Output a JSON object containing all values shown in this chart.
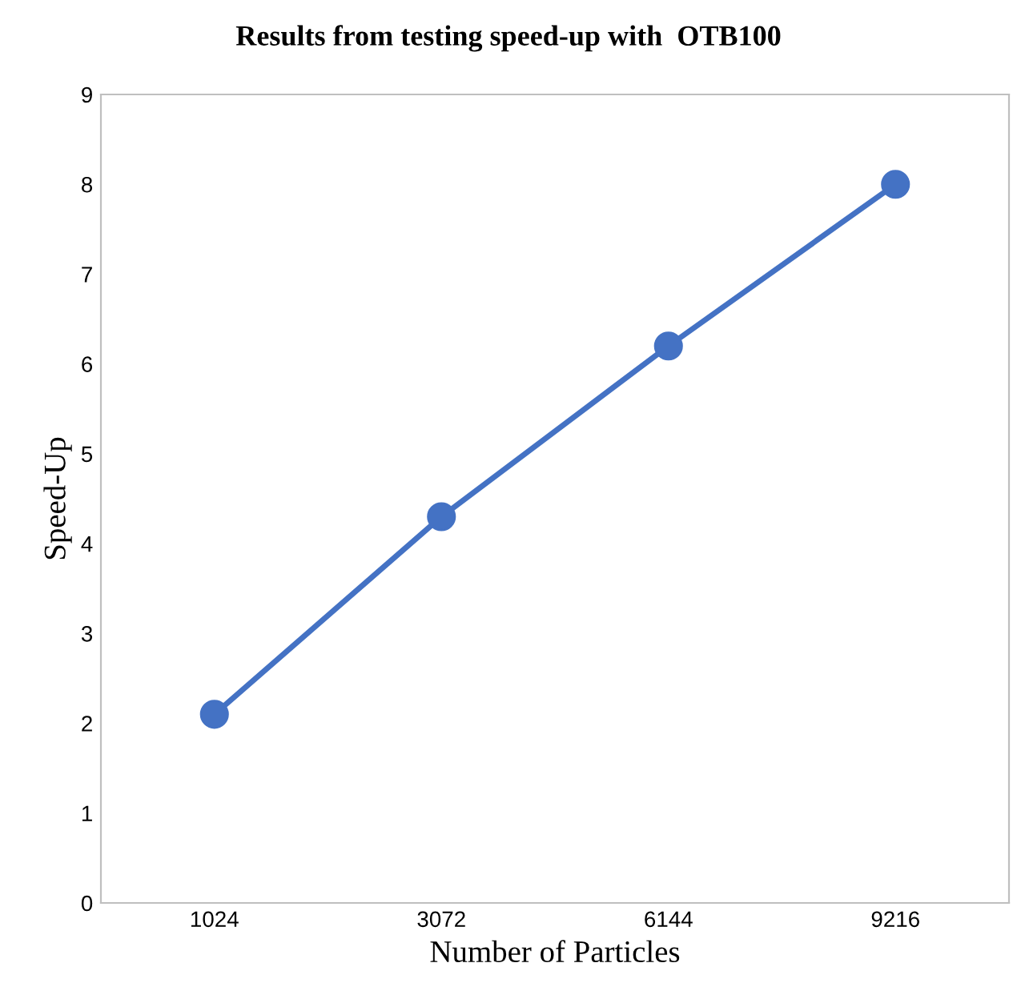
{
  "chart_data": {
    "type": "line",
    "title": "Results from testing speed-up with  OTB100",
    "xlabel": "Number of Particles",
    "ylabel": "Speed-Up",
    "categories": [
      "1024",
      "3072",
      "6144",
      "9216"
    ],
    "series": [
      {
        "color": "#4472c4",
        "values": [
          2.1,
          4.3,
          6.2,
          8.0
        ]
      }
    ],
    "ylim": [
      0,
      9
    ],
    "yticks": [
      0,
      1,
      2,
      3,
      4,
      5,
      6,
      7,
      8,
      9
    ],
    "grid": false,
    "legend": false,
    "marker": "circle",
    "line_style": "solid"
  }
}
